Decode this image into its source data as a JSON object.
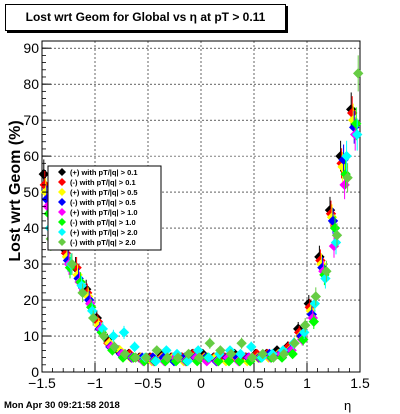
{
  "chart_data": {
    "type": "scatter",
    "title": "Lost wrt Geom for Global vs  η at pT > 0.11",
    "xlabel": "η",
    "ylabel": "Lost wrt Geom (%)",
    "xlim": [
      -1.5,
      1.5
    ],
    "ylim": [
      0,
      92
    ],
    "x_ticks": [
      -1.5,
      -1,
      -0.5,
      0,
      0.5,
      1,
      1.5
    ],
    "x_tick_labels": [
      "−1.5",
      "−1",
      "−0.5",
      "0",
      "0.5",
      "1",
      "1.5"
    ],
    "y_ticks": [
      0,
      10,
      20,
      30,
      40,
      50,
      60,
      70,
      80,
      90
    ],
    "y_tick_labels": [
      "0",
      "10",
      "20",
      "30",
      "40",
      "50",
      "60",
      "70",
      "80",
      "90"
    ],
    "grid": true,
    "legend_position": "left-center",
    "series": [
      {
        "name": "(+) with pT/|q| > 0.1",
        "color": "#000000",
        "marker": "diamond",
        "x": [
          -1.45,
          -1.35,
          -1.25,
          -1.15,
          -1.05,
          -0.95,
          -0.85,
          -0.75,
          -0.65,
          -0.55,
          -0.45,
          -0.35,
          -0.25,
          -0.15,
          -0.05,
          0.05,
          0.15,
          0.25,
          0.35,
          0.45,
          0.55,
          0.65,
          0.75,
          0.85,
          0.95,
          1.05,
          1.15,
          1.25,
          1.35,
          1.45
        ],
        "y": [
          55,
          45,
          34,
          29,
          23,
          15,
          9,
          6,
          5,
          4,
          4,
          5,
          4,
          4,
          5,
          5,
          4,
          4,
          5,
          4,
          5,
          5,
          6,
          7,
          12,
          19,
          32,
          45,
          60,
          73
        ]
      },
      {
        "name": "(-) with pT/|q| > 0.1",
        "color": "#ff0000",
        "marker": "diamond",
        "x": [
          -1.45,
          -1.35,
          -1.25,
          -1.15,
          -1.05,
          -0.95,
          -0.85,
          -0.75,
          -0.65,
          -0.55,
          -0.45,
          -0.35,
          -0.25,
          -0.15,
          -0.05,
          0.05,
          0.15,
          0.25,
          0.35,
          0.45,
          0.55,
          0.65,
          0.75,
          0.85,
          0.95,
          1.05,
          1.15,
          1.25,
          1.35,
          1.45
        ],
        "y": [
          52,
          44,
          33,
          29,
          22,
          14,
          8,
          6,
          5,
          4,
          4,
          4,
          4,
          4,
          5,
          4,
          4,
          4,
          4,
          4,
          5,
          5,
          5,
          7,
          11,
          18,
          31,
          44,
          58,
          72
        ]
      },
      {
        "name": "(+) with pT/|q| > 0.5",
        "color": "#ffff00",
        "marker": "diamond",
        "x": [
          -1.45,
          -1.35,
          -1.25,
          -1.15,
          -1.05,
          -0.95,
          -0.85,
          -0.75,
          -0.65,
          -0.55,
          -0.45,
          -0.35,
          -0.25,
          -0.15,
          -0.05,
          0.05,
          0.15,
          0.25,
          0.35,
          0.45,
          0.55,
          0.65,
          0.75,
          0.85,
          0.95,
          1.05,
          1.15,
          1.25,
          1.35,
          1.45
        ],
        "y": [
          50,
          43,
          32,
          27,
          21,
          13,
          8,
          6,
          4,
          4,
          3,
          4,
          4,
          3,
          4,
          4,
          4,
          3,
          4,
          3,
          4,
          4,
          5,
          6,
          10,
          17,
          30,
          43,
          57,
          70
        ]
      },
      {
        "name": "(-) with pT/|q| > 0.5",
        "color": "#0000ff",
        "marker": "diamond",
        "x": [
          -1.45,
          -1.35,
          -1.25,
          -1.15,
          -1.05,
          -0.95,
          -0.85,
          -0.75,
          -0.65,
          -0.55,
          -0.45,
          -0.35,
          -0.25,
          -0.15,
          -0.05,
          0.05,
          0.15,
          0.25,
          0.35,
          0.45,
          0.55,
          0.65,
          0.75,
          0.85,
          0.95,
          1.05,
          1.15,
          1.25,
          1.35,
          1.45
        ],
        "y": [
          48,
          42,
          31,
          26,
          20,
          12,
          7,
          5,
          4,
          4,
          4,
          4,
          3,
          4,
          4,
          4,
          3,
          4,
          4,
          4,
          4,
          5,
          5,
          6,
          10,
          16,
          29,
          42,
          59,
          68
        ]
      },
      {
        "name": "(+) with pT/|q| > 1.0",
        "color": "#ff00ff",
        "marker": "diamond",
        "x": [
          -1.45,
          -1.35,
          -1.25,
          -1.15,
          -1.05,
          -0.95,
          -0.85,
          -0.75,
          -0.65,
          -0.55,
          -0.45,
          -0.35,
          -0.25,
          -0.15,
          -0.05,
          0.05,
          0.15,
          0.25,
          0.35,
          0.45,
          0.55,
          0.65,
          0.75,
          0.85,
          0.95,
          1.05,
          1.15,
          1.25,
          1.35,
          1.45
        ],
        "y": [
          46,
          40,
          30,
          25,
          19,
          12,
          7,
          5,
          4,
          3,
          3,
          3,
          4,
          3,
          4,
          3,
          3,
          4,
          3,
          4,
          4,
          4,
          5,
          6,
          9,
          15,
          28,
          35,
          52,
          66
        ]
      },
      {
        "name": "(-) with pT/|q| > 1.0",
        "color": "#00ff00",
        "marker": "diamond",
        "x": [
          -1.45,
          -1.35,
          -1.25,
          -1.15,
          -1.05,
          -0.95,
          -0.85,
          -0.75,
          -0.65,
          -0.55,
          -0.45,
          -0.35,
          -0.25,
          -0.15,
          -0.05,
          0.05,
          0.15,
          0.25,
          0.35,
          0.45,
          0.55,
          0.65,
          0.75,
          0.85,
          0.95,
          1.05,
          1.15,
          1.25,
          1.35,
          1.45
        ],
        "y": [
          44,
          39,
          29,
          25,
          18,
          11,
          6,
          4,
          4,
          3,
          3,
          3,
          3,
          3,
          3,
          4,
          3,
          3,
          3,
          3,
          4,
          4,
          4,
          5,
          9,
          14,
          27,
          40,
          55,
          69
        ]
      },
      {
        "name": "(+) with pT/|q| > 2.0",
        "color": "#00ffff",
        "marker": "diamond",
        "x": [
          -1.45,
          -1.35,
          -1.25,
          -1.15,
          -1.05,
          -0.95,
          -0.85,
          -0.75,
          -0.65,
          -0.55,
          -0.45,
          -0.35,
          -0.25,
          -0.15,
          -0.05,
          0.05,
          0.15,
          0.25,
          0.35,
          0.45,
          0.55,
          0.65,
          0.75,
          0.85,
          0.95,
          1.05,
          1.15,
          1.25,
          1.35,
          1.45
        ],
        "y": [
          40,
          38,
          30,
          24,
          17,
          12,
          10,
          11,
          7,
          4,
          3,
          6,
          5,
          3,
          6,
          4,
          5,
          6,
          5,
          7,
          4,
          5,
          6,
          8,
          11,
          19,
          26,
          36,
          60,
          66
        ]
      },
      {
        "name": "(-) with pT/|q| > 2.0",
        "color": "#66cc44",
        "marker": "diamond",
        "x": [
          -1.45,
          -1.35,
          -1.25,
          -1.15,
          -1.05,
          -0.95,
          -0.85,
          -0.75,
          -0.65,
          -0.55,
          -0.45,
          -0.35,
          -0.25,
          -0.15,
          -0.05,
          0.05,
          0.15,
          0.25,
          0.35,
          0.45,
          0.55,
          0.65,
          0.75,
          0.85,
          0.95,
          1.05,
          1.15,
          1.25,
          1.35,
          1.45
        ],
        "y": [
          37,
          51,
          30,
          22,
          15,
          10,
          7,
          5,
          4,
          4,
          6,
          4,
          4,
          5,
          4,
          8,
          6,
          5,
          8,
          4,
          5,
          4,
          5,
          8,
          13,
          21,
          28,
          38,
          54,
          83
        ]
      }
    ]
  },
  "footer": {
    "timestamp": "Mon Apr 30 09:21:58 2018"
  }
}
